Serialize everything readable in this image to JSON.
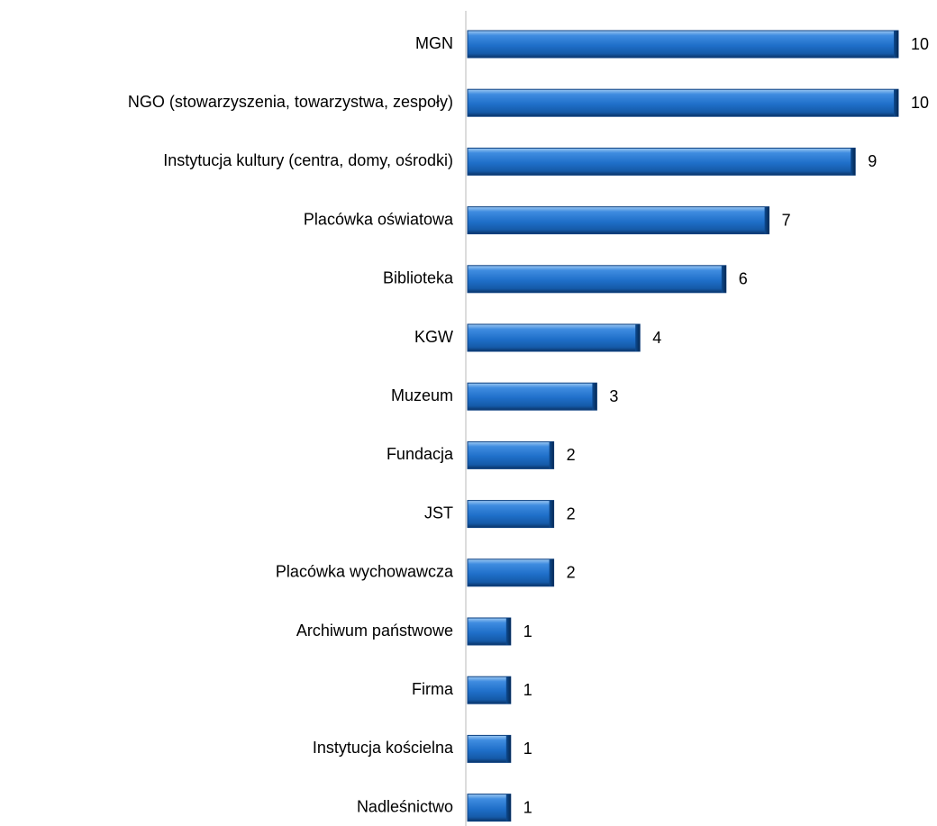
{
  "chart_data": {
    "type": "barh",
    "categories": [
      "MGN",
      "NGO (stowarzyszenia, towarzystwa, zespoły)",
      "Instytucja kultury (centra, domy, ośrodki)",
      "Placówka oświatowa",
      "Biblioteka",
      "KGW",
      "Muzeum",
      "Fundacja",
      "JST",
      "Placówka wychowawcza",
      "Archiwum państwowe",
      "Firma",
      "Instytucja kościelna",
      "Nadleśnictwo"
    ],
    "values": [
      10,
      10,
      9,
      7,
      6,
      4,
      3,
      2,
      2,
      2,
      1,
      1,
      1,
      1
    ],
    "color": "#1f6fc9"
  }
}
